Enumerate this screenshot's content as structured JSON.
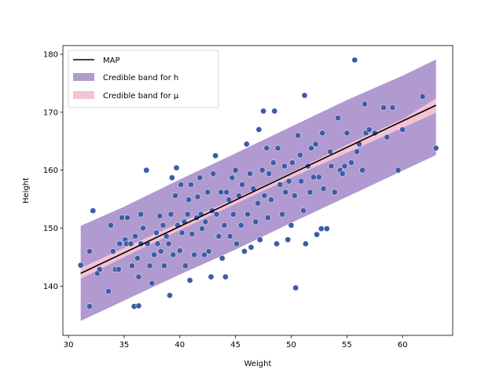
{
  "chart_data": {
    "type": "scatter",
    "xlabel": "Weight",
    "ylabel": "Height",
    "xlim": [
      29.5,
      64.5
    ],
    "ylim": [
      131.5,
      181.5
    ],
    "xticks": [
      30,
      35,
      40,
      45,
      50,
      55,
      60
    ],
    "yticks": [
      140,
      150,
      160,
      170,
      180
    ],
    "map_line": {
      "label": "MAP",
      "color": "#000000",
      "x": [
        31.1,
        63.0
      ],
      "y": [
        142.2,
        171.2
      ]
    },
    "band_h": {
      "label": "Credible band for h",
      "color": "#b09ad0",
      "x": [
        31.1,
        35,
        40,
        45,
        50,
        55,
        60,
        63.0
      ],
      "lower": [
        134.0,
        137.5,
        142.0,
        146.3,
        150.9,
        155.4,
        159.9,
        162.6
      ],
      "upper": [
        150.4,
        153.7,
        158.4,
        162.9,
        167.5,
        172.1,
        176.3,
        179.1
      ]
    },
    "band_mu": {
      "label": "Credible band for μ",
      "color": "#f4c2d3",
      "x": [
        31.1,
        35,
        40,
        45,
        50,
        55,
        60,
        63.0
      ],
      "lower": [
        141.3,
        145.0,
        149.7,
        154.2,
        158.7,
        163.0,
        167.3,
        169.9
      ],
      "upper": [
        143.1,
        146.6,
        150.9,
        155.1,
        159.6,
        164.4,
        168.8,
        172.4
      ]
    },
    "points_color": "#3d5ca8",
    "points": [
      [
        31.1,
        143.6
      ],
      [
        31.9,
        136.5
      ],
      [
        31.9,
        146.0
      ],
      [
        32.2,
        153.0
      ],
      [
        32.6,
        142.2
      ],
      [
        32.8,
        142.9
      ],
      [
        33.6,
        139.1
      ],
      [
        33.8,
        150.5
      ],
      [
        34.0,
        146.0
      ],
      [
        34.2,
        142.9
      ],
      [
        34.5,
        142.9
      ],
      [
        34.6,
        147.3
      ],
      [
        34.8,
        151.8
      ],
      [
        35.1,
        148.0
      ],
      [
        35.2,
        147.3
      ],
      [
        35.3,
        151.8
      ],
      [
        35.6,
        147.3
      ],
      [
        35.7,
        143.5
      ],
      [
        35.9,
        136.5
      ],
      [
        36.0,
        148.6
      ],
      [
        36.2,
        144.8
      ],
      [
        36.3,
        141.6
      ],
      [
        36.3,
        136.6
      ],
      [
        36.5,
        147.3
      ],
      [
        36.5,
        152.4
      ],
      [
        36.7,
        150.0
      ],
      [
        37.0,
        160.0
      ],
      [
        37.1,
        147.3
      ],
      [
        37.3,
        143.5
      ],
      [
        37.5,
        140.5
      ],
      [
        37.7,
        145.4
      ],
      [
        37.9,
        149.2
      ],
      [
        38.0,
        147.3
      ],
      [
        38.2,
        152.1
      ],
      [
        38.3,
        146.0
      ],
      [
        38.5,
        150.5
      ],
      [
        38.6,
        143.5
      ],
      [
        38.8,
        148.6
      ],
      [
        39.0,
        147.3
      ],
      [
        39.1,
        138.4
      ],
      [
        39.2,
        152.4
      ],
      [
        39.3,
        158.7
      ],
      [
        39.4,
        145.4
      ],
      [
        39.6,
        155.6
      ],
      [
        39.7,
        160.4
      ],
      [
        39.8,
        150.5
      ],
      [
        40.0,
        146.1
      ],
      [
        40.1,
        157.5
      ],
      [
        40.2,
        149.2
      ],
      [
        40.4,
        151.1
      ],
      [
        40.5,
        143.5
      ],
      [
        40.7,
        152.4
      ],
      [
        40.8,
        154.9
      ],
      [
        40.9,
        141.0
      ],
      [
        41.0,
        157.5
      ],
      [
        41.1,
        149.0
      ],
      [
        41.3,
        145.4
      ],
      [
        41.5,
        151.8
      ],
      [
        41.6,
        155.4
      ],
      [
        41.8,
        158.7
      ],
      [
        41.9,
        152.4
      ],
      [
        42.0,
        149.9
      ],
      [
        42.2,
        145.4
      ],
      [
        42.3,
        151.1
      ],
      [
        42.5,
        156.2
      ],
      [
        42.6,
        146.0
      ],
      [
        42.8,
        141.6
      ],
      [
        42.9,
        153.0
      ],
      [
        43.0,
        159.4
      ],
      [
        43.2,
        162.5
      ],
      [
        43.3,
        152.4
      ],
      [
        43.5,
        148.6
      ],
      [
        43.7,
        156.2
      ],
      [
        43.8,
        144.8
      ],
      [
        44.0,
        150.5
      ],
      [
        44.1,
        141.6
      ],
      [
        44.2,
        156.2
      ],
      [
        44.4,
        154.9
      ],
      [
        44.5,
        148.6
      ],
      [
        44.7,
        158.7
      ],
      [
        44.8,
        152.4
      ],
      [
        45.0,
        160.0
      ],
      [
        45.1,
        147.3
      ],
      [
        45.3,
        155.6
      ],
      [
        45.5,
        150.5
      ],
      [
        45.6,
        157.5
      ],
      [
        45.8,
        146.0
      ],
      [
        46.0,
        164.5
      ],
      [
        46.1,
        152.4
      ],
      [
        46.3,
        159.4
      ],
      [
        46.4,
        146.7
      ],
      [
        46.6,
        156.8
      ],
      [
        46.8,
        151.1
      ],
      [
        47.0,
        154.3
      ],
      [
        47.1,
        167.0
      ],
      [
        47.2,
        148.0
      ],
      [
        47.4,
        160.0
      ],
      [
        47.5,
        170.2
      ],
      [
        47.6,
        155.6
      ],
      [
        47.8,
        163.8
      ],
      [
        47.9,
        151.8
      ],
      [
        48.0,
        159.4
      ],
      [
        48.2,
        154.9
      ],
      [
        48.4,
        161.3
      ],
      [
        48.5,
        170.2
      ],
      [
        48.7,
        147.3
      ],
      [
        48.8,
        163.8
      ],
      [
        49.0,
        157.5
      ],
      [
        49.2,
        152.4
      ],
      [
        49.4,
        160.7
      ],
      [
        49.5,
        156.2
      ],
      [
        49.7,
        148.0
      ],
      [
        49.8,
        158.1
      ],
      [
        50.0,
        150.5
      ],
      [
        50.1,
        161.3
      ],
      [
        50.3,
        155.6
      ],
      [
        50.4,
        139.7
      ],
      [
        50.6,
        166.0
      ],
      [
        50.8,
        162.6
      ],
      [
        50.9,
        158.1
      ],
      [
        51.1,
        153.0
      ],
      [
        51.2,
        172.9
      ],
      [
        51.3,
        147.3
      ],
      [
        51.5,
        160.7
      ],
      [
        51.7,
        156.2
      ],
      [
        51.8,
        163.8
      ],
      [
        52.0,
        158.8
      ],
      [
        52.2,
        164.5
      ],
      [
        52.3,
        148.9
      ],
      [
        52.5,
        158.8
      ],
      [
        52.7,
        149.9
      ],
      [
        52.8,
        166.4
      ],
      [
        52.9,
        156.8
      ],
      [
        53.2,
        149.9
      ],
      [
        53.5,
        163.2
      ],
      [
        53.6,
        160.7
      ],
      [
        53.9,
        156.2
      ],
      [
        54.2,
        169.0
      ],
      [
        54.4,
        160.0
      ],
      [
        54.6,
        159.4
      ],
      [
        54.8,
        160.7
      ],
      [
        55.0,
        166.4
      ],
      [
        55.4,
        161.3
      ],
      [
        55.7,
        179.0
      ],
      [
        55.9,
        163.2
      ],
      [
        56.1,
        164.5
      ],
      [
        56.4,
        160.0
      ],
      [
        56.6,
        171.4
      ],
      [
        56.7,
        166.4
      ],
      [
        57.0,
        167.0
      ],
      [
        57.5,
        166.4
      ],
      [
        58.3,
        170.8
      ],
      [
        58.6,
        165.7
      ],
      [
        59.1,
        170.8
      ],
      [
        59.6,
        160.0
      ],
      [
        60.0,
        167.0
      ],
      [
        61.8,
        172.7
      ],
      [
        63.0,
        163.8
      ]
    ]
  }
}
